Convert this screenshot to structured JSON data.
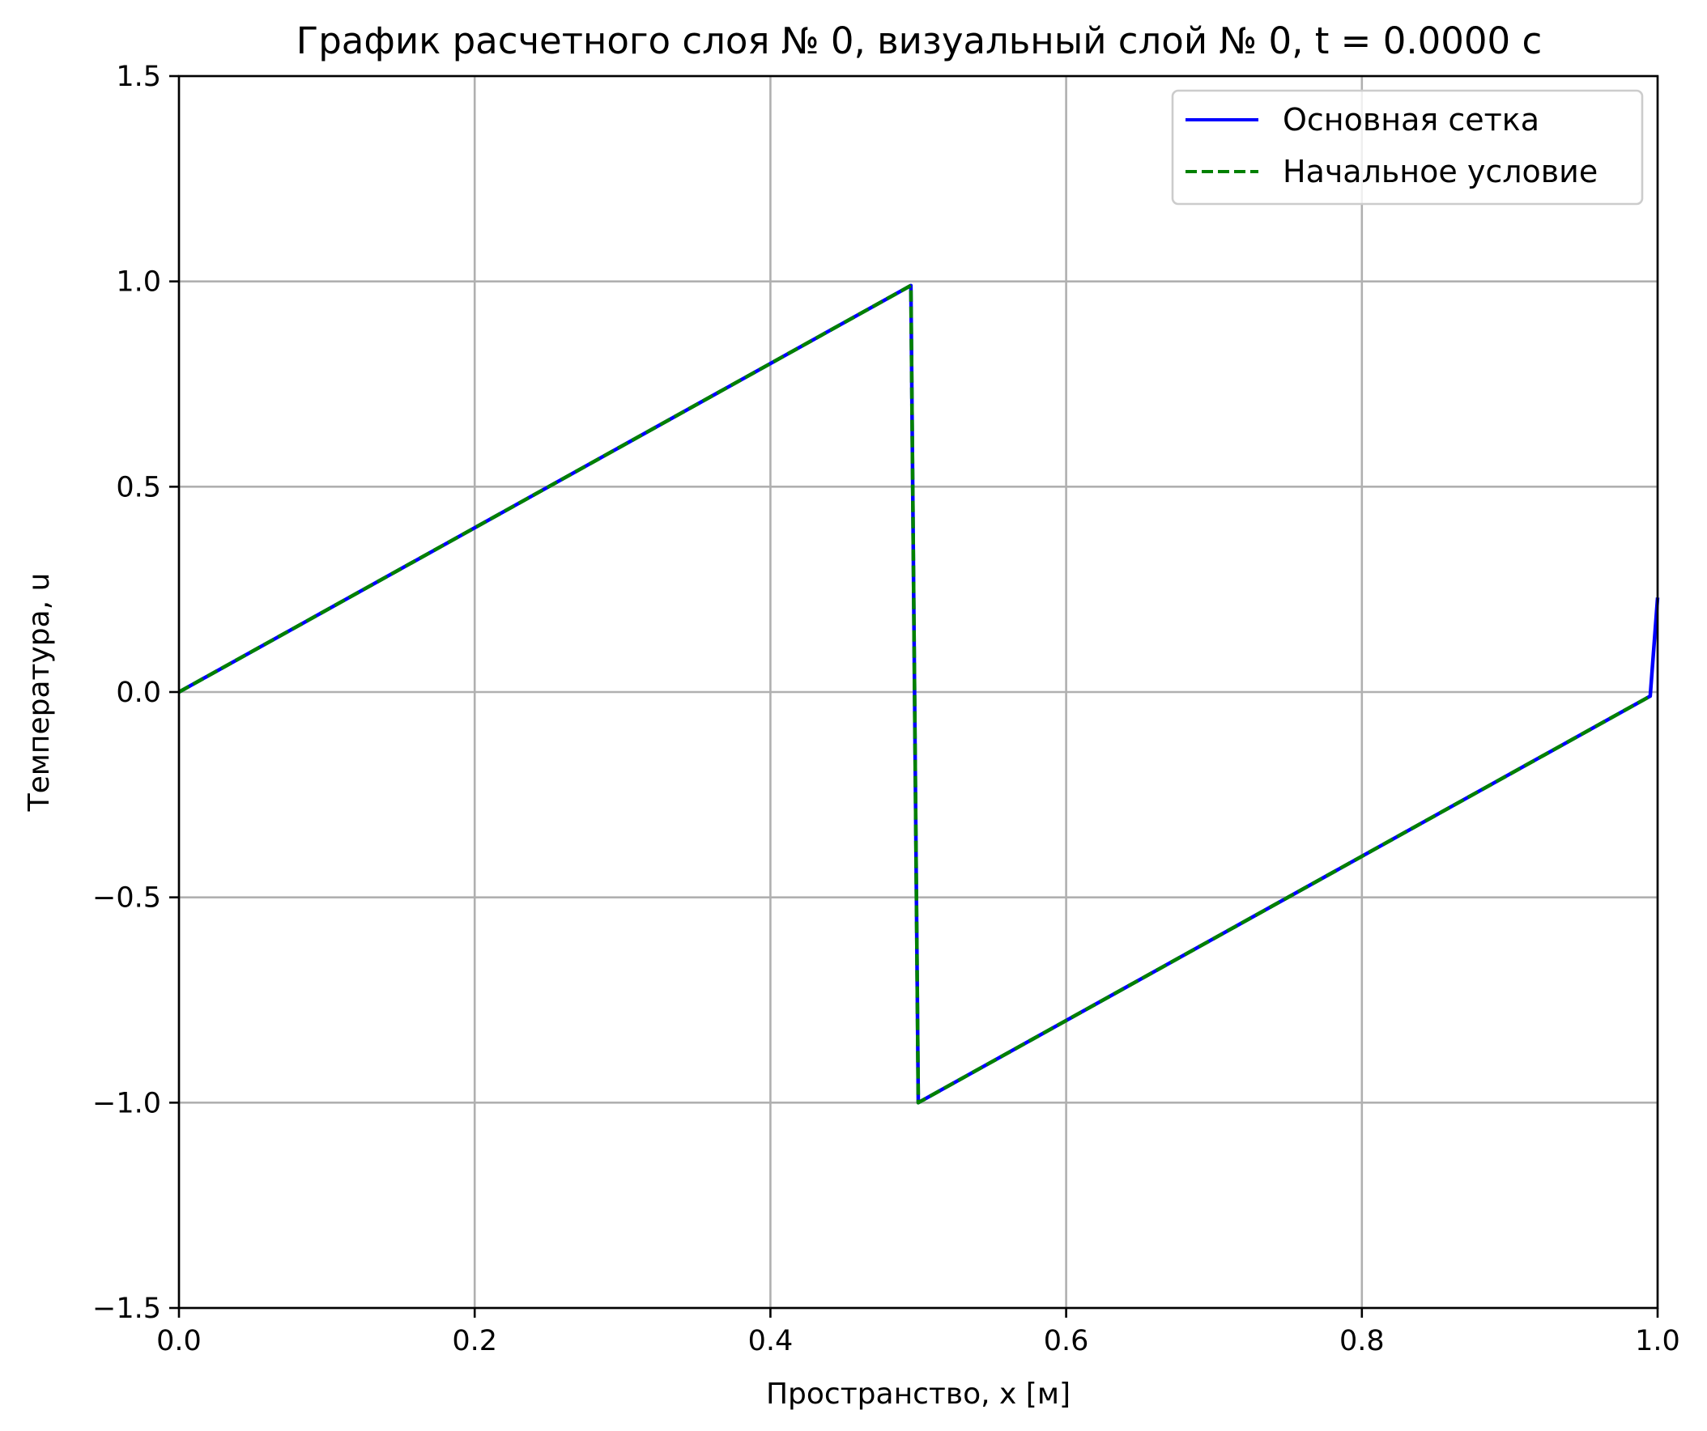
{
  "chart_data": {
    "type": "line",
    "title": "График расчетного слоя № 0, визуальный слой № 0, t = 0.0000 с",
    "xlabel": "Пространство, x [м]",
    "ylabel": "Температура, u",
    "xlim": [
      0.0,
      1.0
    ],
    "ylim": [
      -1.5,
      1.5
    ],
    "xticks": [
      0.0,
      0.2,
      0.4,
      0.6,
      0.8,
      1.0
    ],
    "xtick_labels": [
      "0.0",
      "0.2",
      "0.4",
      "0.6",
      "0.8",
      "1.0"
    ],
    "yticks": [
      -1.5,
      -1.0,
      -0.5,
      0.0,
      0.5,
      1.0,
      1.5
    ],
    "ytick_labels": [
      "−1.5",
      "−1.0",
      "−0.5",
      "0.0",
      "0.5",
      "1.0",
      "1.5"
    ],
    "grid": true,
    "legend_position": "top-right",
    "series": [
      {
        "name": "Основная сетка",
        "color": "#0000ff",
        "style": "solid",
        "x": [
          0.0,
          0.495,
          0.5,
          0.995,
          1.0
        ],
        "y": [
          0.0,
          0.99,
          -1.0,
          -0.01,
          0.23
        ]
      },
      {
        "name": "Начальное условие",
        "color": "#008000",
        "style": "dashed",
        "x": [
          0.0,
          0.495,
          0.5,
          0.995
        ],
        "y": [
          0.0,
          0.99,
          -1.0,
          -0.01
        ]
      }
    ]
  }
}
